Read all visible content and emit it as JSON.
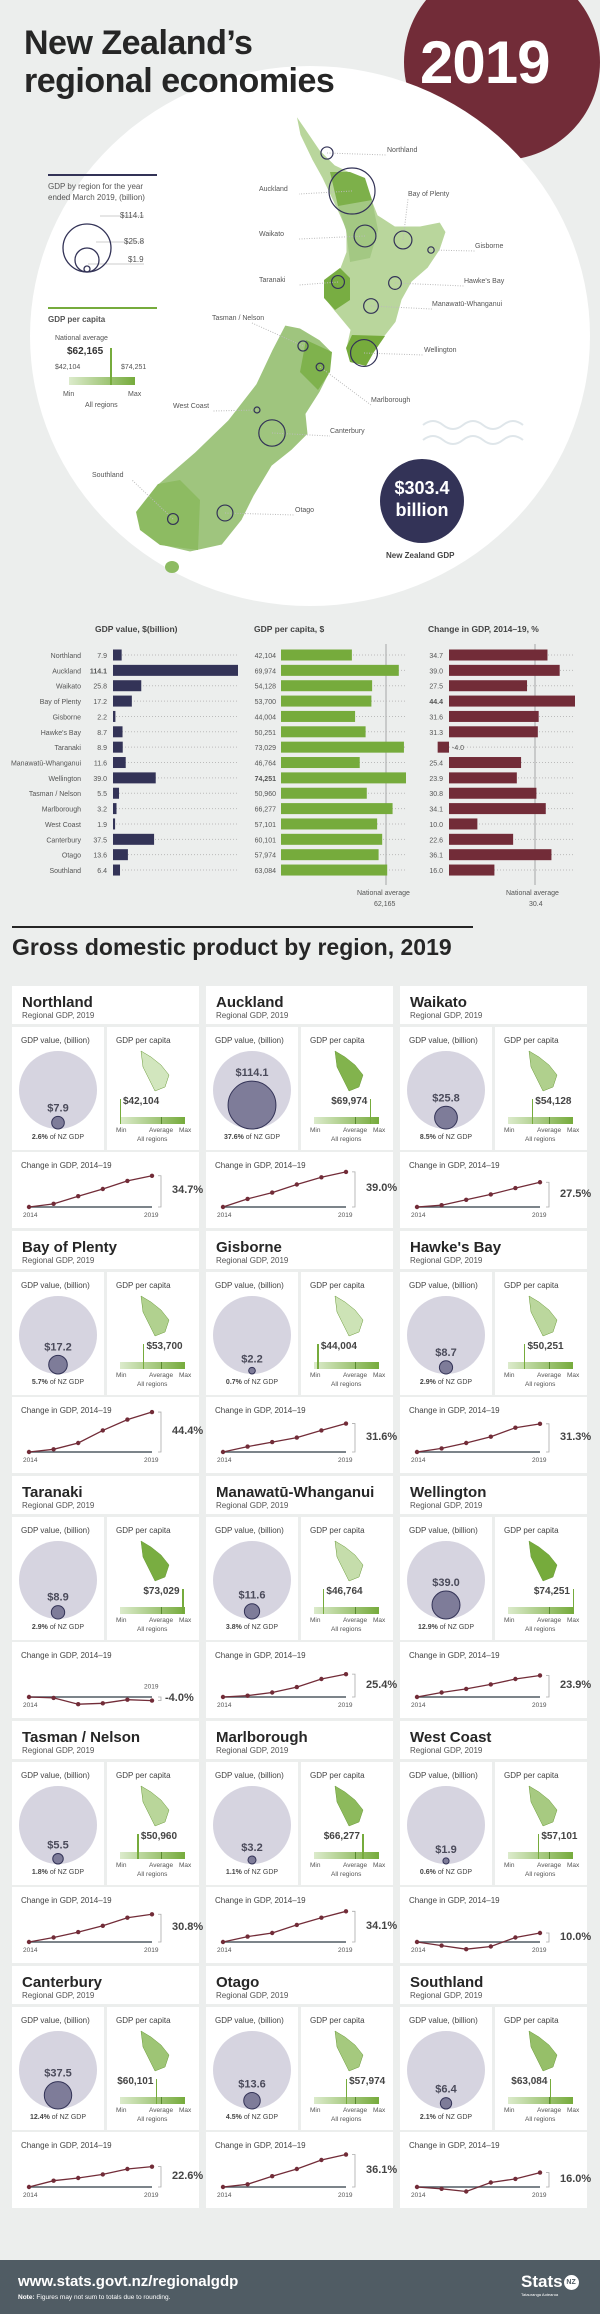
{
  "header": {
    "title_line1": "New Zealand’s",
    "title_line2": "regional economies",
    "year": "2019"
  },
  "legend": {
    "gdp_title": "GDP by region for the year ended March 2019, (billion)",
    "gdp_sizes": [
      "$114.1",
      "$25.8",
      "$1.9"
    ],
    "per_capita_title": "GDP per capita",
    "national_average_label": "National average",
    "national_average": "$62,165",
    "min": "$42,104",
    "max": "$74,251",
    "min_label": "Min",
    "max_label": "Max",
    "all_regions": "All regions"
  },
  "total": {
    "value": "$303.4",
    "unit": "billion",
    "label": "New Zealand GDP"
  },
  "colors": {
    "maroon": "#722c38",
    "navy": "#333357",
    "green": "#76ab3c",
    "footer": "#505c64",
    "background": "#eceeed"
  },
  "chart_data": [
    {
      "type": "bar",
      "title": "GDP value, $(billion)",
      "orientation": "horizontal",
      "categories": [
        "Northland",
        "Auckland",
        "Waikato",
        "Bay of Plenty",
        "Gisborne",
        "Hawke's Bay",
        "Taranaki",
        "Manawatū-Whanganui",
        "Wellington",
        "Tasman / Nelson",
        "Marlborough",
        "West Coast",
        "Canterbury",
        "Otago",
        "Southland"
      ],
      "values": [
        7.9,
        114.1,
        25.8,
        17.2,
        2.2,
        8.7,
        8.9,
        11.6,
        39.0,
        5.5,
        3.2,
        1.9,
        37.5,
        13.6,
        6.4
      ]
    },
    {
      "type": "bar",
      "title": "GDP per capita, $",
      "orientation": "horizontal",
      "values": [
        42104,
        69974,
        54128,
        53700,
        44004,
        50251,
        73029,
        46764,
        74251,
        50960,
        66277,
        57101,
        60101,
        57974,
        63084
      ],
      "reference_line": {
        "label": "National average",
        "value": 62165,
        "value_label": "62,165"
      }
    },
    {
      "type": "bar",
      "title": "Change in GDP, 2014–19, %",
      "orientation": "horizontal",
      "values": [
        34.7,
        39.0,
        27.5,
        44.4,
        31.6,
        31.3,
        -4.0,
        25.4,
        23.9,
        30.8,
        34.1,
        10.0,
        22.6,
        36.1,
        16.0
      ],
      "reference_line": {
        "label": "National average",
        "value": 30.4,
        "value_label": "30.4"
      }
    }
  ],
  "section2": {
    "title": "Gross domestic product by region, 2019",
    "subtitle": "Regional GDP, 2019",
    "gdp_value_label": "GDP value, (billion)",
    "per_capita_label": "GDP per capita",
    "share_suffix": "of NZ GDP",
    "change_label": "Change in GDP, 2014–19",
    "year_start": "2014",
    "year_end": "2019",
    "min": "Min",
    "average": "Average",
    "max": "Max",
    "all_regions": "All regions"
  },
  "regions": [
    {
      "name": "Northland",
      "gdp": "$7.9",
      "share": "2.6%",
      "per_capita": "$42,104",
      "change": "34.7%",
      "series": [
        0,
        3.5,
        12,
        20,
        29,
        34.7
      ]
    },
    {
      "name": "Auckland",
      "gdp": "$114.1",
      "share": "37.6%",
      "per_capita": "$69,974",
      "change": "39.0%",
      "series": [
        0,
        9,
        16,
        25,
        33,
        39
      ]
    },
    {
      "name": "Waikato",
      "gdp": "$25.8",
      "share": "8.5%",
      "per_capita": "$54,128",
      "change": "27.5%",
      "series": [
        0,
        2,
        8,
        14,
        21,
        27.5
      ]
    },
    {
      "name": "Bay of Plenty",
      "gdp": "$17.2",
      "share": "5.7%",
      "per_capita": "$53,700",
      "change": "44.4%",
      "series": [
        0,
        3,
        10,
        24,
        36,
        44.4
      ]
    },
    {
      "name": "Gisborne",
      "gdp": "$2.2",
      "share": "0.7%",
      "per_capita": "$44,004",
      "change": "31.6%",
      "series": [
        0,
        6,
        11,
        16,
        24,
        31.6
      ]
    },
    {
      "name": "Hawke's Bay",
      "gdp": "$8.7",
      "share": "2.9%",
      "per_capita": "$50,251",
      "change": "31.3%",
      "series": [
        0,
        4,
        10,
        17,
        27,
        31.3
      ]
    },
    {
      "name": "Taranaki",
      "gdp": "$8.9",
      "share": "2.9%",
      "per_capita": "$73,029",
      "change": "-4.0%",
      "series": [
        0,
        -1,
        -8,
        -7,
        -3,
        -4
      ]
    },
    {
      "name": "Manawatū-Whanganui",
      "gdp": "$11.6",
      "share": "3.8%",
      "per_capita": "$46,764",
      "change": "25.4%",
      "series": [
        0,
        1.5,
        5,
        11,
        20,
        25.4
      ]
    },
    {
      "name": "Wellington",
      "gdp": "$39.0",
      "share": "12.9%",
      "per_capita": "$74,251",
      "change": "23.9%",
      "series": [
        0,
        5,
        9,
        14,
        20,
        23.9
      ]
    },
    {
      "name": "Tasman / Nelson",
      "gdp": "$5.5",
      "share": "1.8%",
      "per_capita": "$50,960",
      "change": "30.8%",
      "series": [
        0,
        5,
        11,
        18,
        27,
        30.8
      ]
    },
    {
      "name": "Marlborough",
      "gdp": "$3.2",
      "share": "1.1%",
      "per_capita": "$66,277",
      "change": "34.1%",
      "series": [
        0,
        6,
        10,
        19,
        27,
        34.1
      ]
    },
    {
      "name": "West Coast",
      "gdp": "$1.9",
      "share": "0.6%",
      "per_capita": "$57,101",
      "change": "10.0%",
      "series": [
        0,
        -4,
        -8,
        -5,
        5,
        10
      ]
    },
    {
      "name": "Canterbury",
      "gdp": "$37.5",
      "share": "12.4%",
      "per_capita": "$60,101",
      "change": "22.6%",
      "series": [
        0,
        7,
        10,
        14,
        20,
        22.6
      ]
    },
    {
      "name": "Otago",
      "gdp": "$13.6",
      "share": "4.5%",
      "per_capita": "$57,974",
      "change": "36.1%",
      "series": [
        0,
        3,
        12,
        20,
        30,
        36.1
      ]
    },
    {
      "name": "Southland",
      "gdp": "$6.4",
      "share": "2.1%",
      "per_capita": "$63,084",
      "change": "16.0%",
      "series": [
        0,
        -2,
        -5,
        5,
        9,
        16
      ]
    }
  ],
  "footer": {
    "url": "www.stats.govt.nz/regionalgdp",
    "note_label": "Note:",
    "note": "Figures may not sum to totals due to rounding.",
    "logo_text": "Stats",
    "logo_badge": "NZ",
    "logo_sub": "Tatauranga Aotearoa"
  }
}
